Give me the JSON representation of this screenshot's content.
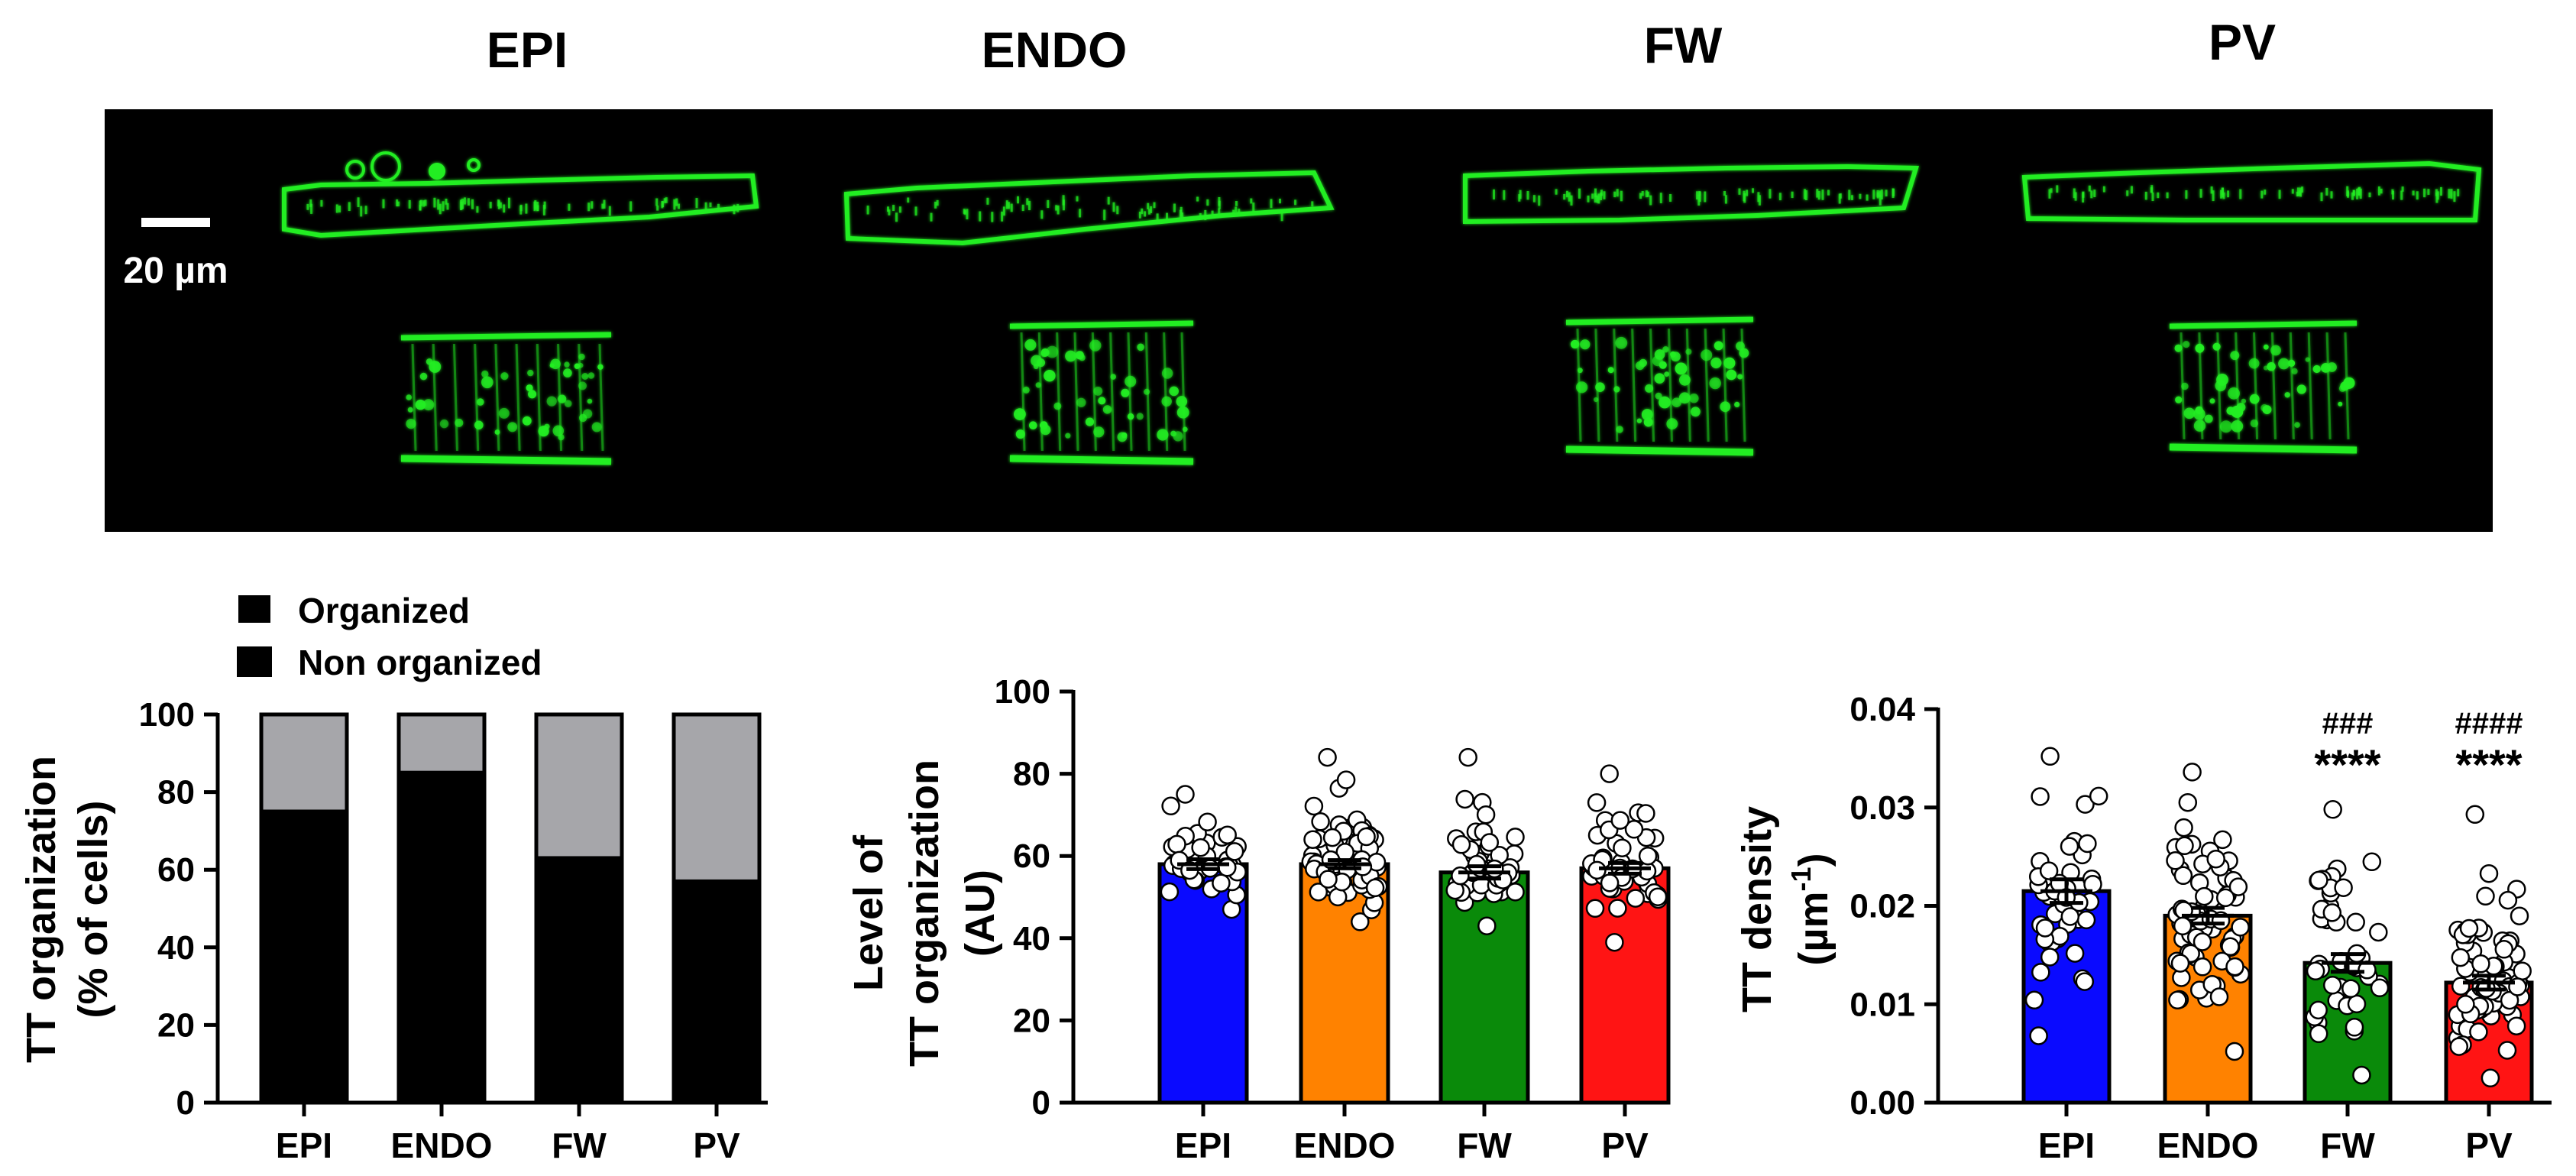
{
  "colors": {
    "EPI": "#0a0aff",
    "ENDO": "#ff8200",
    "FW": "#0a8a0a",
    "PV": "#ff1414",
    "organized": "#000000",
    "non_organized": "#a6a6aa",
    "micrograph_bg": "#000000",
    "stain": "#22ee22"
  },
  "micrograph": {
    "panel_titles": [
      "EPI",
      "ENDO",
      "FW",
      "PV"
    ],
    "scale_label": "20 µm"
  },
  "chart_data": [
    {
      "type": "bar",
      "subtype": "stacked-percent",
      "categories": [
        "EPI",
        "ENDO",
        "FW",
        "PV"
      ],
      "series": [
        {
          "name": "Organized",
          "values": [
            75,
            85,
            63,
            57
          ]
        },
        {
          "name": "Non organized",
          "values": [
            25,
            15,
            37,
            43
          ]
        }
      ],
      "ylabel": [
        "TT organization",
        "(% of cells)"
      ],
      "ylim": [
        0,
        100
      ],
      "yticks": [
        "0",
        "20",
        "40",
        "60",
        "80",
        "100"
      ],
      "legend_position": "top-left",
      "grid": false
    },
    {
      "type": "bar",
      "subtype": "bar-with-points",
      "categories": [
        "EPI",
        "ENDO",
        "FW",
        "PV"
      ],
      "values": [
        58,
        58,
        56,
        57
      ],
      "sem": [
        1.2,
        1.0,
        1.5,
        1.3
      ],
      "n_points": [
        45,
        75,
        45,
        50
      ],
      "points_range": [
        [
          47,
          75
        ],
        [
          44,
          84
        ],
        [
          43,
          84
        ],
        [
          39,
          80
        ]
      ],
      "ylabel": [
        "Level of",
        "TT organization",
        "(AU)"
      ],
      "ylim": [
        0,
        100
      ],
      "yticks": [
        "0",
        "20",
        "40",
        "60",
        "80",
        "100"
      ],
      "grid": false
    },
    {
      "type": "bar",
      "subtype": "bar-with-points",
      "categories": [
        "EPI",
        "ENDO",
        "FW",
        "PV"
      ],
      "values": [
        0.0215,
        0.019,
        0.0142,
        0.0122
      ],
      "sem": [
        0.0012,
        0.0008,
        0.0009,
        0.0007
      ],
      "n_points": [
        45,
        75,
        45,
        65
      ],
      "points_range": [
        [
          0.0068,
          0.0352
        ],
        [
          0.0052,
          0.0336
        ],
        [
          0.0028,
          0.0298
        ],
        [
          0.0025,
          0.0293
        ]
      ],
      "ylabel": [
        "TT density",
        "(µm",
        "-1",
        ")"
      ],
      "ylim": [
        0,
        0.04
      ],
      "yticks": [
        "0.00",
        "0.01",
        "0.02",
        "0.03",
        "0.04"
      ],
      "annotations": [
        {
          "category": "FW",
          "lines": [
            "###",
            "****"
          ]
        },
        {
          "category": "PV",
          "lines": [
            "####",
            "****"
          ]
        }
      ],
      "grid": false
    }
  ]
}
